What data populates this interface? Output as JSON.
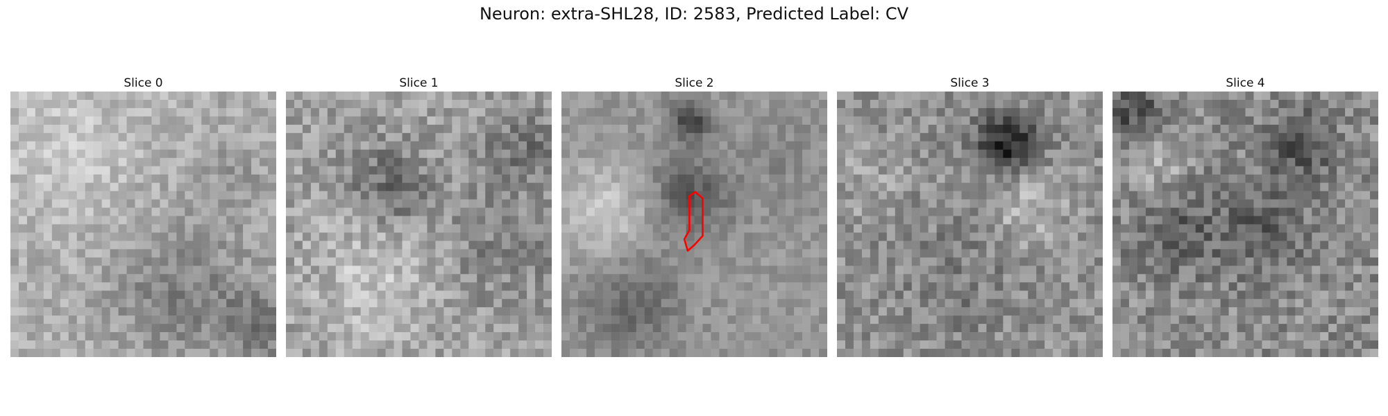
{
  "figure": {
    "title": "Neuron: extra-SHL28, ID: 2583, Predicted Label: CV"
  },
  "colors": {
    "background": "#ffffff",
    "contour": "#ff0000"
  },
  "panels": [
    {
      "title": "Slice 0",
      "image_icon": "grayscale-noise-patch",
      "has_contour": false
    },
    {
      "title": "Slice 1",
      "image_icon": "grayscale-noise-patch",
      "has_contour": false
    },
    {
      "title": "Slice 2",
      "image_icon": "grayscale-noise-patch",
      "has_contour": true
    },
    {
      "title": "Slice 3",
      "image_icon": "grayscale-noise-patch",
      "has_contour": false
    },
    {
      "title": "Slice 4",
      "image_icon": "grayscale-noise-patch",
      "has_contour": false
    }
  ]
}
